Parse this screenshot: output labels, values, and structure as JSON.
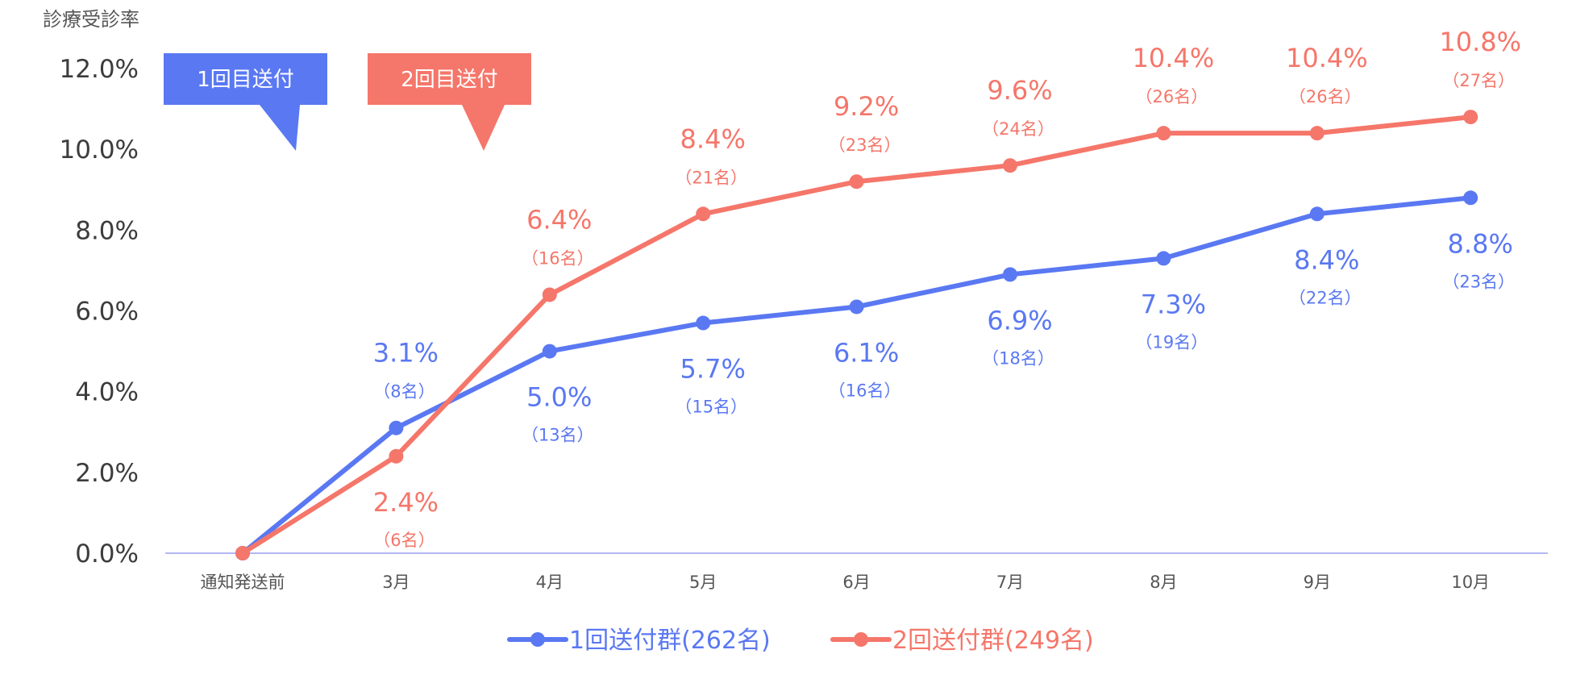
{
  "chart_data": {
    "type": "line",
    "ylabel": "診療受診率",
    "categories": [
      "通知発送前",
      "3月",
      "4月",
      "5月",
      "6月",
      "7月",
      "8月",
      "9月",
      "10月"
    ],
    "ylim": [
      0,
      12
    ],
    "yticks": [
      "0.0%",
      "2.0%",
      "4.0%",
      "6.0%",
      "8.0%",
      "10.0%",
      "12.0%"
    ],
    "series": [
      {
        "name": "1回送付群(262名)",
        "color": "#5a78f2",
        "values": [
          0,
          3.1,
          5.0,
          5.7,
          6.1,
          6.9,
          7.3,
          8.4,
          8.8
        ],
        "pct_labels": [
          "",
          "3.1%",
          "5.0%",
          "5.7%",
          "6.1%",
          "6.9%",
          "7.3%",
          "8.4%",
          "8.8%"
        ],
        "count_labels": [
          "",
          "（8名）",
          "（13名）",
          "（15名）",
          "（16名）",
          "（18名）",
          "（19名）",
          "（22名）",
          "（23名）"
        ]
      },
      {
        "name": "2回送付群(249名)",
        "color": "#f5766a",
        "values": [
          0,
          2.4,
          6.4,
          8.4,
          9.2,
          9.6,
          10.4,
          10.4,
          10.8
        ],
        "pct_labels": [
          "",
          "2.4%",
          "6.4%",
          "8.4%",
          "9.2%",
          "9.6%",
          "10.4%",
          "10.4%",
          "10.8%"
        ],
        "count_labels": [
          "",
          "（6名）",
          "（16名）",
          "（21名）",
          "（23名）",
          "（24名）",
          "（26名）",
          "（26名）",
          "（27名）"
        ]
      }
    ],
    "annotations": [
      {
        "text": "1回目送付",
        "color": "#5a78f2",
        "points_to": "3月"
      },
      {
        "text": "2回目送付",
        "color": "#f5766a",
        "points_to": "4月"
      }
    ]
  }
}
